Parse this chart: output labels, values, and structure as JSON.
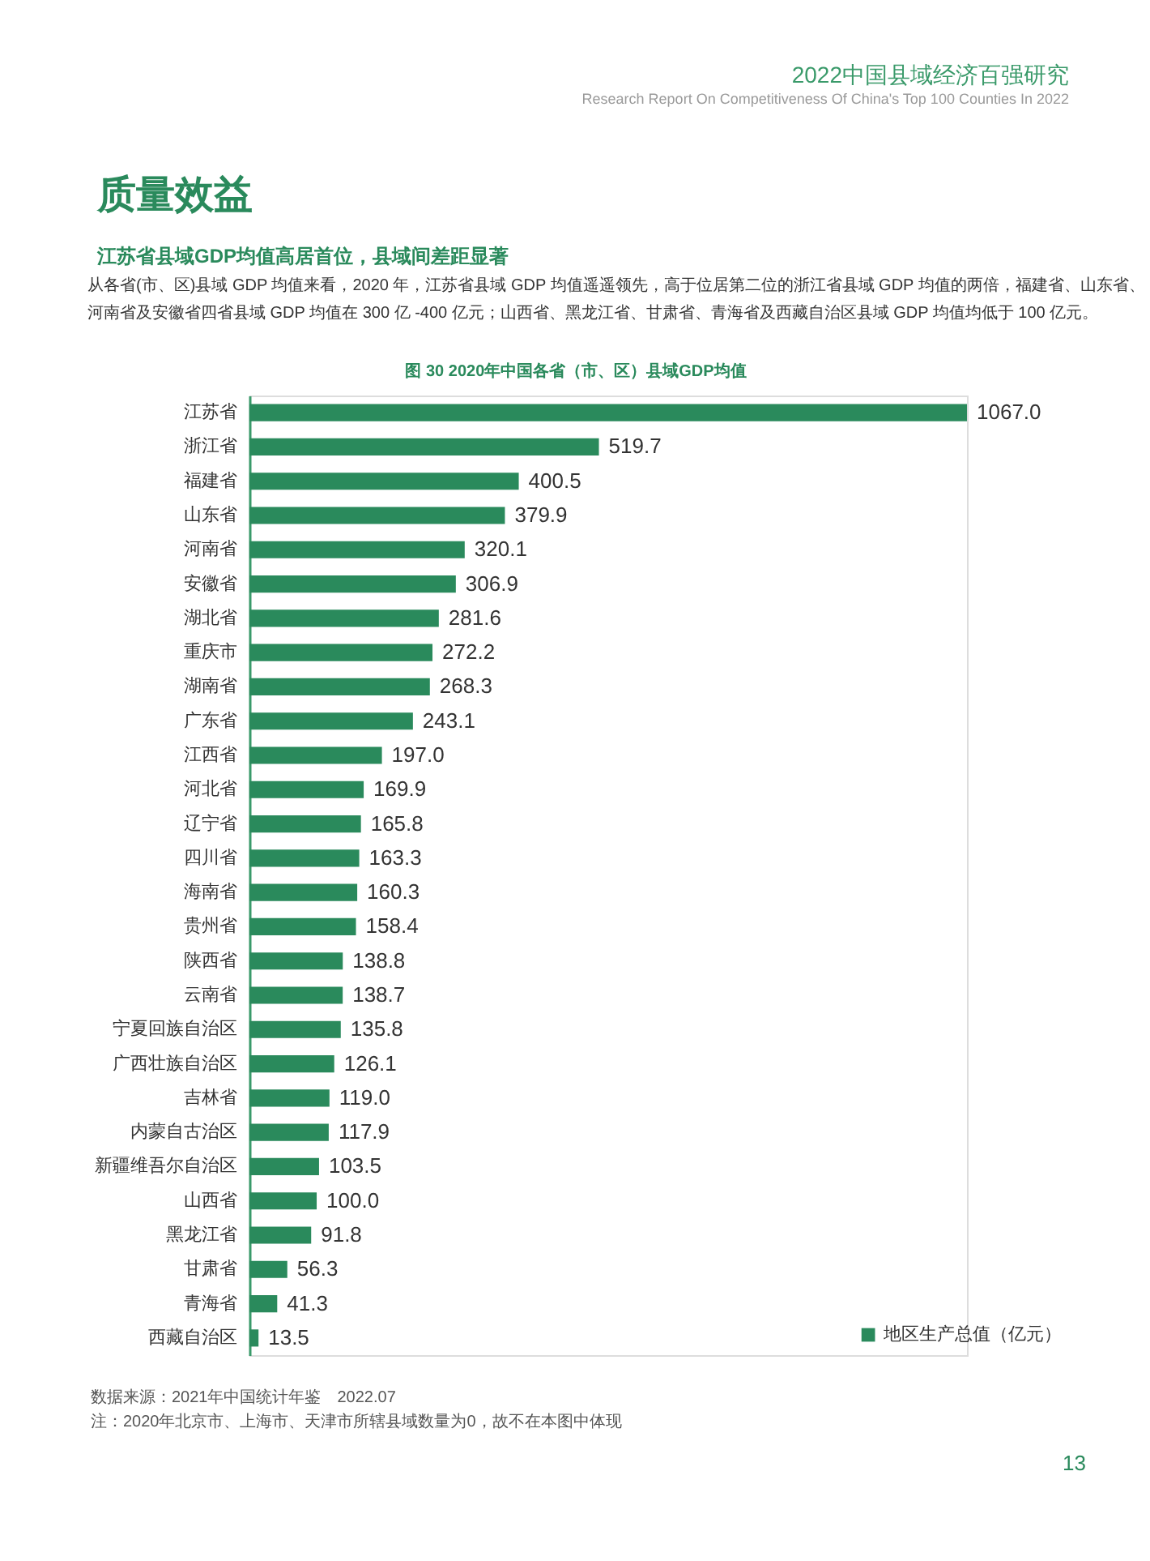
{
  "chart_data": {
    "type": "bar",
    "orientation": "horizontal",
    "title": "图 30  2020年中国各省（市、区）县域GDP均值",
    "categories": [
      "江苏省",
      "浙江省",
      "福建省",
      "山东省",
      "河南省",
      "安徽省",
      "湖北省",
      "重庆市",
      "湖南省",
      "广东省",
      "江西省",
      "河北省",
      "辽宁省",
      "四川省",
      "海南省",
      "贵州省",
      "陕西省",
      "云南省",
      "宁夏回族自治区",
      "广西壮族自治区",
      "吉林省",
      "内蒙自古治区",
      "新疆维吾尔自治区",
      "山西省",
      "黑龙江省",
      "甘肃省",
      "青海省",
      "西藏自治区"
    ],
    "series": [
      {
        "name": "地区生产总值（亿元）",
        "color": "#2a8a5c",
        "values": [
          1067.0,
          519.7,
          400.5,
          379.9,
          320.1,
          306.9,
          281.6,
          272.2,
          268.3,
          243.1,
          197.0,
          169.9,
          165.8,
          163.3,
          160.3,
          158.4,
          138.8,
          138.7,
          135.8,
          126.1,
          119.0,
          117.9,
          103.5,
          100.0,
          91.8,
          56.3,
          41.3,
          13.5
        ],
        "value_labels": [
          "1067.0",
          "519.7",
          "400.5",
          "379.9",
          "320.1",
          "306.9",
          "281.6",
          "272.2",
          "268.3",
          "243.1",
          "197.0",
          "169.9",
          "165.8",
          "163.3",
          "160.3",
          "158.4",
          "138.8",
          "138.7",
          "135.8",
          "126.1",
          "119.0",
          "117.9",
          "103.5",
          "100.0",
          "91.8",
          "56.3",
          "41.3",
          "13.5"
        ]
      }
    ],
    "legend": "bottom right",
    "annotations": [
      "2022中国县域经济百强研究",
      "Research Report On Competitiveness Of China's Top 100 Counties In 2022",
      "质量效益",
      "江苏省县域GDP均值高居首位，县域间差距显著",
      "从各省(市、区)县域 GDP 均值来看，2020 年，江苏省县域 GDP 均值遥遥领先，高于位居第二位的浙江省县域 GDP 均值的两倍，福建省、山东省、",
      "河南省及安徽省四省县域 GDP 均值在 300 亿 -400 亿元；山西省、黑龙江省、甘肃省、青海省及西藏自治区县域 GDP 均值均低于 100 亿元。",
      "数据来源：2021年中国统计年鉴　2022.07",
      "注：2020年北京市、上海市、天津市所辖县域数量为0，故不在本图中体现",
      "13"
    ]
  }
}
